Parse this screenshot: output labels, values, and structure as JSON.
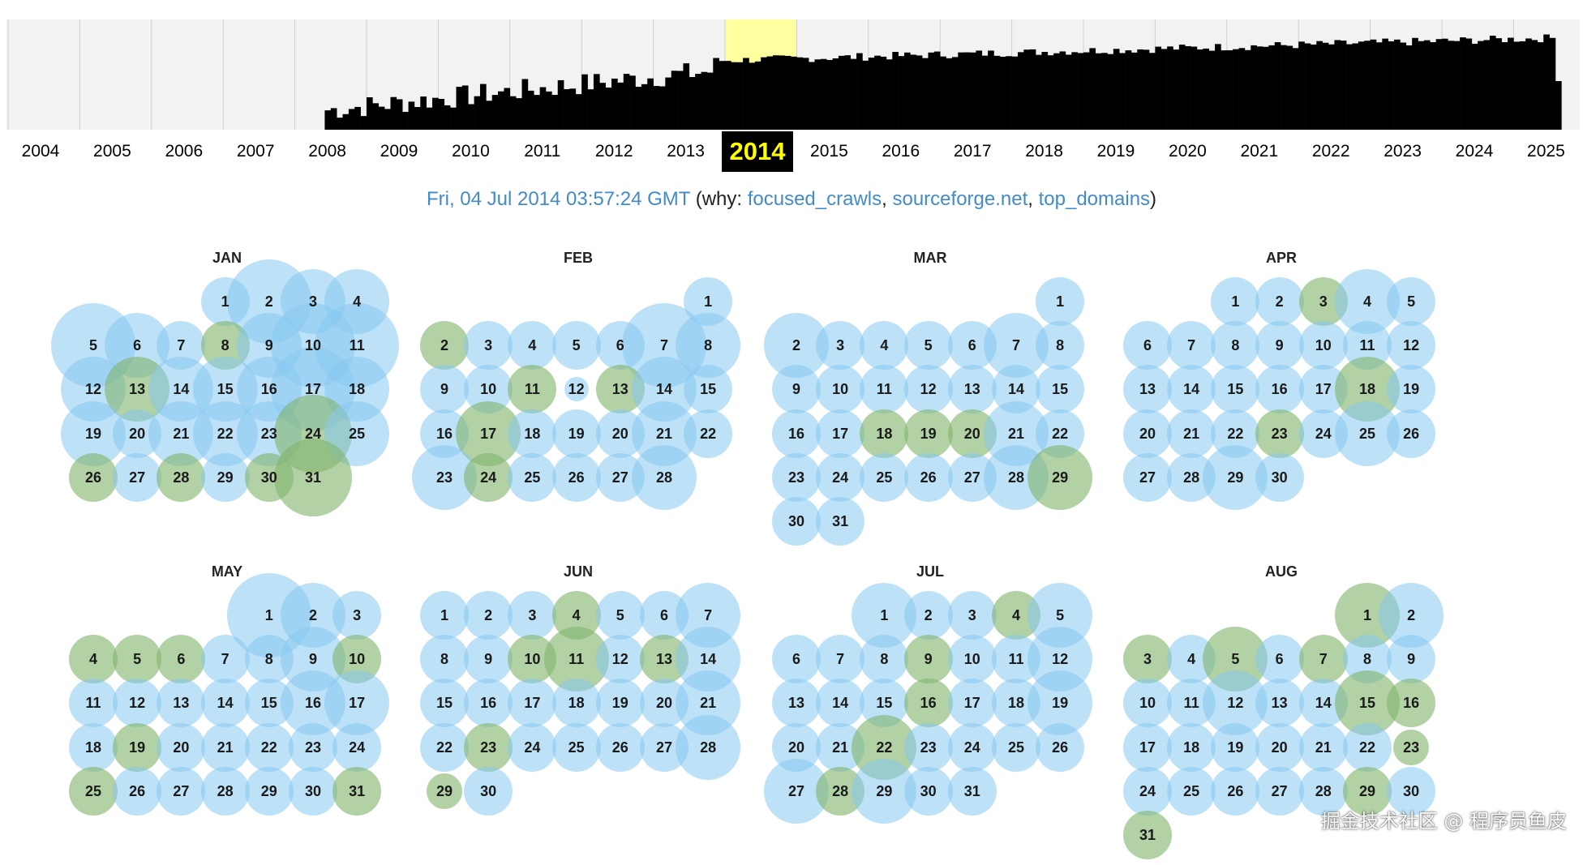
{
  "colors": {
    "link": "#428bca",
    "blue_bubble": "#87c8f0",
    "green_bubble": "#82b46e",
    "selected_year_bg": "#000000",
    "selected_year_fg": "#ffff00",
    "highlight": "#ffffa0"
  },
  "timeline": {
    "years": [
      "2004",
      "2005",
      "2006",
      "2007",
      "2008",
      "2009",
      "2010",
      "2011",
      "2012",
      "2013",
      "2014",
      "2015",
      "2016",
      "2017",
      "2018",
      "2019",
      "2020",
      "2021",
      "2022",
      "2023",
      "2024",
      "2025"
    ],
    "selected_year": "2014"
  },
  "capture": {
    "timestamp": "Fri, 04 Jul 2014 03:57:24 GMT",
    "why_prefix": "(why: ",
    "reasons": [
      "focused_crawls",
      "sourceforge.net",
      "top_domains"
    ],
    "sep": ", ",
    "why_suffix": ")"
  },
  "months": [
    {
      "name": "JAN",
      "first_weekday": 3,
      "days": 31,
      "captures": {
        "1": 1,
        "2": 3,
        "3": 2,
        "4": 2,
        "5": 3,
        "6": 2,
        "7": 1,
        "8": -1,
        "9": 2,
        "10": 3,
        "11": 3,
        "12": 2,
        "13": -2,
        "14": 2,
        "15": 2,
        "16": 2,
        "17": 3,
        "18": 2,
        "19": 2,
        "20": 1,
        "21": 2,
        "22": 2,
        "23": 2,
        "24": -3,
        "25": 2,
        "26": -1,
        "27": 1,
        "28": -1,
        "29": 1,
        "30": -1,
        "31": -3
      }
    },
    {
      "name": "FEB",
      "first_weekday": 6,
      "days": 28,
      "captures": {
        "1": 1,
        "2": -1,
        "3": 1,
        "4": 1,
        "5": 1,
        "6": 1,
        "7": 3,
        "8": 2,
        "9": 1,
        "10": 1,
        "11": -1,
        "12": 0,
        "13": -1,
        "14": 2,
        "15": 1,
        "16": 1,
        "17": -2,
        "18": 1,
        "19": 1,
        "20": 1,
        "21": 2,
        "22": 1,
        "23": 2,
        "24": -1,
        "25": 1,
        "26": 1,
        "27": 1,
        "28": 2
      }
    },
    {
      "name": "MAR",
      "first_weekday": 6,
      "days": 31,
      "captures": {
        "1": 1,
        "2": 2,
        "3": 1,
        "4": 1,
        "5": 1,
        "6": 1,
        "7": 2,
        "8": 1,
        "9": 1,
        "10": 1,
        "11": 1,
        "12": 1,
        "13": 1,
        "14": 1,
        "15": 1,
        "16": 1,
        "17": 1,
        "18": -1,
        "19": -1,
        "20": -1,
        "21": 2,
        "22": 1,
        "23": 1,
        "24": 1,
        "25": 1,
        "26": 1,
        "27": 1,
        "28": 2,
        "29": -2,
        "30": 1,
        "31": 1
      }
    },
    {
      "name": "APR",
      "first_weekday": 2,
      "days": 30,
      "captures": {
        "1": 1,
        "2": 1,
        "3": -1,
        "4": 2,
        "5": 1,
        "6": 1,
        "7": 1,
        "8": 1,
        "9": 1,
        "10": 1,
        "11": 1,
        "12": 1,
        "13": 1,
        "14": 1,
        "15": 1,
        "16": 1,
        "17": 1,
        "18": -2,
        "19": 1,
        "20": 1,
        "21": 1,
        "22": 1,
        "23": -1,
        "24": 1,
        "25": 2,
        "26": 1,
        "27": 1,
        "28": 1,
        "29": 2,
        "30": 1
      }
    },
    {
      "name": "MAY",
      "first_weekday": 4,
      "days": 31,
      "captures": {
        "1": 3,
        "2": 2,
        "3": 1,
        "4": -1,
        "5": -1,
        "6": -1,
        "7": 1,
        "8": 1,
        "9": 2,
        "10": -1,
        "11": 1,
        "12": 1,
        "13": 1,
        "14": 1,
        "15": 1,
        "16": 2,
        "17": 2,
        "18": 1,
        "19": -1,
        "20": 1,
        "21": 1,
        "22": 1,
        "23": 1,
        "24": 1,
        "25": -1,
        "26": 1,
        "27": 1,
        "28": 1,
        "29": 1,
        "30": 1,
        "31": -1
      }
    },
    {
      "name": "JUN",
      "first_weekday": 0,
      "days": 30,
      "captures": {
        "1": 1,
        "2": 1,
        "3": 1,
        "4": -1,
        "5": 1,
        "6": 1,
        "7": 2,
        "8": 1,
        "9": 1,
        "10": -1,
        "11": -2,
        "12": 1,
        "13": -1,
        "14": 2,
        "15": 1,
        "16": 1,
        "17": 1,
        "18": 1,
        "19": 1,
        "20": 1,
        "21": 2,
        "22": 1,
        "23": -1,
        "24": 1,
        "25": 1,
        "26": 1,
        "27": 1,
        "28": 2,
        "29": -0.5,
        "30": 1
      }
    },
    {
      "name": "JUL",
      "first_weekday": 2,
      "days": 31,
      "captures": {
        "1": 2,
        "2": 1,
        "3": 1,
        "4": -1,
        "5": 2,
        "6": 1,
        "7": 1,
        "8": 1,
        "9": -1,
        "10": 1,
        "11": 1,
        "12": 2,
        "13": 1,
        "14": 1,
        "15": 1,
        "16": -1,
        "17": 1,
        "18": 1,
        "19": 2,
        "20": 1,
        "21": 1,
        "22": -2,
        "23": 1,
        "24": 1,
        "25": 1,
        "26": 1,
        "27": 2,
        "28": -1,
        "29": 2,
        "30": 1,
        "31": 1
      }
    },
    {
      "name": "AUG",
      "first_weekday": 5,
      "days": 31,
      "captures": {
        "1": -2,
        "2": 2,
        "3": -1,
        "4": 1,
        "5": -2,
        "6": 1,
        "7": -1,
        "8": 1,
        "9": 1,
        "10": 1,
        "11": 1,
        "12": 2,
        "13": 1,
        "14": 1,
        "15": -2,
        "16": -1,
        "17": 1,
        "18": 1,
        "19": 1,
        "20": 1,
        "21": 1,
        "22": 1,
        "23": -0.5,
        "24": 1,
        "25": 1,
        "26": 1,
        "27": 1,
        "28": 1,
        "29": -1,
        "30": 1,
        "31": -1
      }
    }
  ],
  "watermark": "掘金技术社区 @ 程序员鱼皮"
}
